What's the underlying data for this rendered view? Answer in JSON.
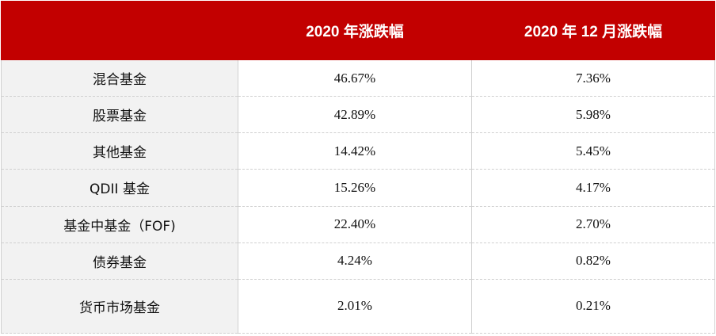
{
  "table": {
    "columns": [
      "",
      "2020 年涨跌幅",
      "2020 年 12 月涨跌幅"
    ],
    "rows": [
      {
        "name": "混合基金",
        "year": "46.67%",
        "dec": "7.36%"
      },
      {
        "name": "股票基金",
        "year": "42.89%",
        "dec": "5.98%"
      },
      {
        "name": "其他基金",
        "year": "14.42%",
        "dec": "5.45%"
      },
      {
        "name": "QDII 基金",
        "year": "15.26%",
        "dec": "4.17%"
      },
      {
        "name": "基金中基金（FOF)",
        "year": "22.40%",
        "dec": "2.70%"
      },
      {
        "name": "债券基金",
        "year": "4.24%",
        "dec": "0.82%"
      },
      {
        "name": "货币市场基金",
        "year": "2.01%",
        "dec": "0.21%"
      }
    ]
  },
  "colors": {
    "header_bg": "#c20000",
    "label_bg": "#f2f2f2"
  }
}
